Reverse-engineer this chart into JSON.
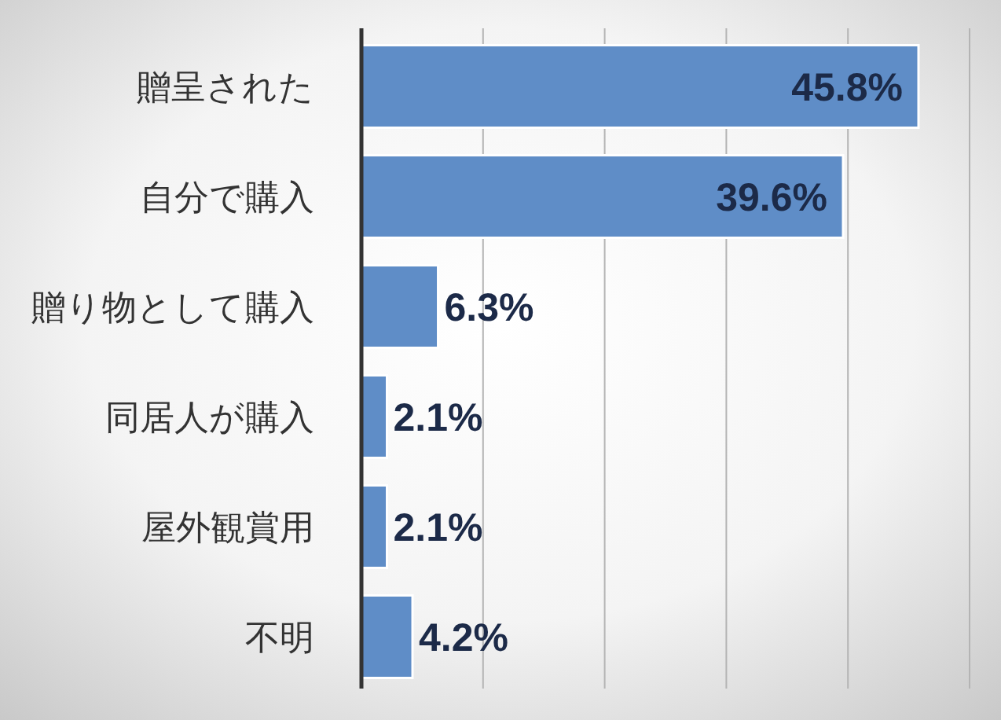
{
  "chart_data": {
    "type": "bar",
    "orientation": "horizontal",
    "categories": [
      "贈呈された",
      "自分で購入",
      "贈り物として購入",
      "同居人が購入",
      "屋外観賞用",
      "不明"
    ],
    "values": [
      45.8,
      39.6,
      6.3,
      2.1,
      2.1,
      4.2
    ],
    "value_labels": [
      "45.8%",
      "39.6%",
      "6.3%",
      "2.1%",
      "2.1%",
      "4.2%"
    ],
    "color": "#5f8dc7",
    "xlim": [
      0,
      50
    ],
    "xticks": [
      {
        "value": 0,
        "label": null
      },
      {
        "value": 10,
        "label": null
      },
      {
        "value": 20,
        "label": null
      },
      {
        "value": 30,
        "label": null
      },
      {
        "value": 40,
        "label": null
      },
      {
        "value": 50,
        "label": null
      }
    ],
    "grid": "x",
    "tick_labels": "y"
  }
}
